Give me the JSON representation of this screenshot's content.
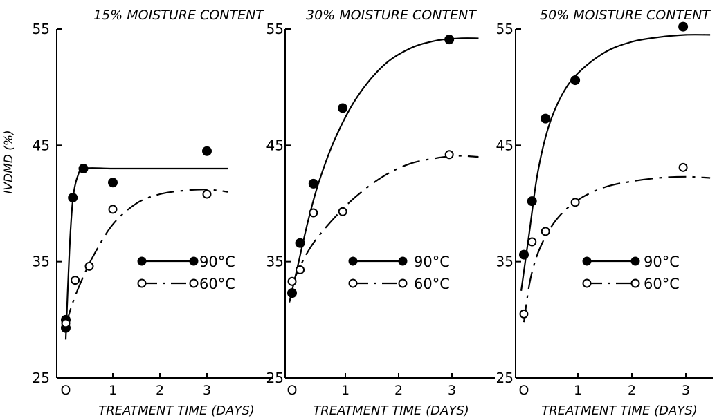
{
  "chart_data": [
    {
      "type": "line",
      "title": "15% MOISTURE CONTENT",
      "xlabel": "TREATMENT TIME (DAYS)",
      "ylabel": "IVDMD (%)",
      "xlim": [
        -0.15,
        2.9
      ],
      "ylim": [
        25,
        55
      ],
      "xticks": [
        0,
        1,
        2,
        3
      ],
      "xtick_labels": [
        "O",
        "1",
        "2",
        "3"
      ],
      "yticks": [
        25,
        35,
        45,
        55
      ],
      "legend_placement": "middle-right",
      "series": [
        {
          "name": "90°C",
          "marker": "filled",
          "line": "solid",
          "points": [
            [
              0,
              30.0
            ],
            [
              0,
              29.3
            ],
            [
              0.15,
              40.5
            ],
            [
              0.375,
              43.0
            ],
            [
              1,
              41.8
            ],
            [
              3,
              44.5
            ]
          ],
          "curve": [
            [
              0,
              28.3
            ],
            [
              0.08,
              36
            ],
            [
              0.15,
              40.3
            ],
            [
              0.25,
              42.3
            ],
            [
              0.4,
              43.0
            ],
            [
              1,
              43.0
            ],
            [
              2,
              43.0
            ],
            [
              3,
              43.0
            ],
            [
              3.45,
              43.0
            ]
          ]
        },
        {
          "name": "60°C",
          "marker": "open",
          "line": "dashed",
          "points": [
            [
              0,
              29.7
            ],
            [
              0.2,
              33.4
            ],
            [
              0.5,
              34.6
            ],
            [
              1,
              39.5
            ],
            [
              3,
              40.8
            ]
          ],
          "curve": [
            [
              0,
              29.5
            ],
            [
              0.15,
              31.5
            ],
            [
              0.35,
              33.5
            ],
            [
              0.6,
              35.6
            ],
            [
              1,
              38.2
            ],
            [
              1.5,
              40.0
            ],
            [
              2,
              40.8
            ],
            [
              2.5,
              41.1
            ],
            [
              3,
              41.2
            ],
            [
              3.45,
              41.0
            ]
          ]
        }
      ]
    },
    {
      "type": "line",
      "title": "30% MOISTURE CONTENT",
      "xlabel": "TREATMENT TIME (DAYS)",
      "ylabel": "",
      "xlim": [
        -0.1,
        3.6
      ],
      "ylim": [
        25,
        55
      ],
      "xticks": [
        0,
        1,
        2,
        3
      ],
      "xtick_labels": [
        "O",
        "1",
        "2",
        "3"
      ],
      "yticks": [
        25,
        35,
        45,
        55
      ],
      "legend_placement": "middle-right",
      "series": [
        {
          "name": "90°C",
          "marker": "filled",
          "line": "solid",
          "points": [
            [
              0,
              32.3
            ],
            [
              0.15,
              36.6
            ],
            [
              0.4,
              41.7
            ],
            [
              0.95,
              48.2
            ],
            [
              2.95,
              54.1
            ]
          ],
          "curve": [
            [
              -0.05,
              31.5
            ],
            [
              0.1,
              34.5
            ],
            [
              0.3,
              38.5
            ],
            [
              0.5,
              41.8
            ],
            [
              0.8,
              45.5
            ],
            [
              1.2,
              49.0
            ],
            [
              1.7,
              51.8
            ],
            [
              2.2,
              53.3
            ],
            [
              2.7,
              54.0
            ],
            [
              3.15,
              54.2
            ],
            [
              3.5,
              54.2
            ]
          ]
        },
        {
          "name": "60°C",
          "marker": "open",
          "line": "dashed",
          "points": [
            [
              0,
              33.3
            ],
            [
              0.15,
              34.3
            ],
            [
              0.4,
              39.2
            ],
            [
              0.95,
              39.3
            ],
            [
              2.95,
              44.2
            ]
          ],
          "curve": [
            [
              0,
              33.0
            ],
            [
              0.15,
              34.6
            ],
            [
              0.4,
              36.6
            ],
            [
              0.8,
              38.8
            ],
            [
              1.2,
              40.6
            ],
            [
              1.7,
              42.3
            ],
            [
              2.2,
              43.4
            ],
            [
              2.7,
              43.9
            ],
            [
              3.1,
              44.1
            ],
            [
              3.5,
              44.0
            ]
          ]
        }
      ]
    },
    {
      "type": "line",
      "title": "50% MOISTURE CONTENT",
      "xlabel": "TREATMENT TIME (DAYS)",
      "ylabel": "",
      "xlim": [
        -0.15,
        3.6
      ],
      "ylim": [
        25,
        55
      ],
      "xticks": [
        0,
        1,
        2,
        3
      ],
      "xtick_labels": [
        "O",
        "1",
        "2",
        "3"
      ],
      "yticks": [
        25,
        35,
        45,
        55
      ],
      "legend_placement": "middle-right",
      "series": [
        {
          "name": "90°C",
          "marker": "filled",
          "line": "solid",
          "points": [
            [
              0,
              35.6
            ],
            [
              0.15,
              40.2
            ],
            [
              0.4,
              47.3
            ],
            [
              0.95,
              50.6
            ],
            [
              2.95,
              55.2
            ]
          ],
          "curve": [
            [
              -0.05,
              32.5
            ],
            [
              0.1,
              37.5
            ],
            [
              0.25,
              42.5
            ],
            [
              0.45,
              46.5
            ],
            [
              0.7,
              49.3
            ],
            [
              1.0,
              51.2
            ],
            [
              1.5,
              53.0
            ],
            [
              2.0,
              53.9
            ],
            [
              2.5,
              54.3
            ],
            [
              3.0,
              54.5
            ],
            [
              3.45,
              54.5
            ]
          ]
        },
        {
          "name": "60°C",
          "marker": "open",
          "line": "dashed",
          "points": [
            [
              0,
              30.5
            ],
            [
              0.15,
              36.7
            ],
            [
              0.4,
              37.6
            ],
            [
              0.95,
              40.1
            ],
            [
              2.95,
              43.1
            ]
          ],
          "curve": [
            [
              0,
              29.8
            ],
            [
              0.12,
              33.5
            ],
            [
              0.3,
              36.2
            ],
            [
              0.6,
              38.6
            ],
            [
              1.0,
              40.3
            ],
            [
              1.5,
              41.4
            ],
            [
              2.0,
              41.9
            ],
            [
              2.5,
              42.2
            ],
            [
              3.0,
              42.3
            ],
            [
              3.45,
              42.2
            ]
          ]
        }
      ]
    }
  ]
}
